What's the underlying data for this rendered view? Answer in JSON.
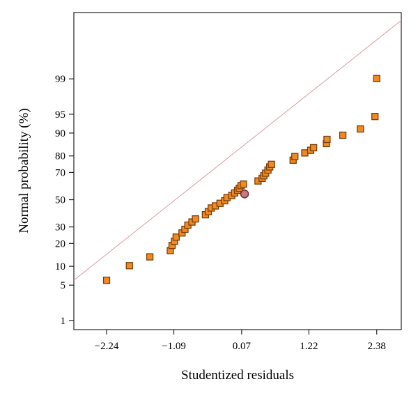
{
  "chart_data": {
    "type": "scatter",
    "title": "",
    "xlabel": "Studentized residuals",
    "ylabel": "Normal probability (%)",
    "xlim": [
      -2.8,
      2.8
    ],
    "ylim": [
      -2.5,
      3.6
    ],
    "x_ticks": [
      {
        "value": -2.24,
        "label": "−2.24"
      },
      {
        "value": -1.09,
        "label": "−1.09"
      },
      {
        "value": 0.07,
        "label": "0.07"
      },
      {
        "value": 1.22,
        "label": "1.22"
      },
      {
        "value": 2.38,
        "label": "2.38"
      }
    ],
    "y_ticks": [
      {
        "value": 1,
        "label": "1"
      },
      {
        "value": 5,
        "label": "5"
      },
      {
        "value": 10,
        "label": "10"
      },
      {
        "value": 20,
        "label": "20"
      },
      {
        "value": 30,
        "label": "30"
      },
      {
        "value": 50,
        "label": "50"
      },
      {
        "value": 70,
        "label": "70"
      },
      {
        "value": 80,
        "label": "80"
      },
      {
        "value": 90,
        "label": "90"
      },
      {
        "value": 95,
        "label": "95"
      },
      {
        "value": 99,
        "label": "99"
      }
    ],
    "reference_line": {
      "x": [
        -2.8,
        2.8
      ],
      "y": [
        -1.55,
        3.45
      ],
      "color": "#d99aa0"
    },
    "series": [
      {
        "marker": "square",
        "color": "#f08a24",
        "stroke": "#7a3d06",
        "points": [
          {
            "x": -2.24,
            "y": -1.55
          },
          {
            "x": -1.85,
            "y": -1.27
          },
          {
            "x": -1.5,
            "y": -1.1
          },
          {
            "x": -1.15,
            "y": -0.98
          },
          {
            "x": -1.12,
            "y": -0.88
          },
          {
            "x": -1.08,
            "y": -0.8
          },
          {
            "x": -1.05,
            "y": -0.72
          },
          {
            "x": -0.95,
            "y": -0.64
          },
          {
            "x": -0.9,
            "y": -0.57
          },
          {
            "x": -0.85,
            "y": -0.49
          },
          {
            "x": -0.78,
            "y": -0.43
          },
          {
            "x": -0.72,
            "y": -0.37
          },
          {
            "x": -0.55,
            "y": -0.29
          },
          {
            "x": -0.5,
            "y": -0.23
          },
          {
            "x": -0.45,
            "y": -0.16
          },
          {
            "x": -0.38,
            "y": -0.12
          },
          {
            "x": -0.3,
            "y": -0.07
          },
          {
            "x": -0.22,
            "y": -0.02
          },
          {
            "x": -0.18,
            "y": 0.04
          },
          {
            "x": -0.1,
            "y": 0.08
          },
          {
            "x": -0.05,
            "y": 0.13
          },
          {
            "x": 0.0,
            "y": 0.18
          },
          {
            "x": 0.03,
            "y": 0.22
          },
          {
            "x": 0.06,
            "y": 0.27
          },
          {
            "x": 0.1,
            "y": 0.3
          },
          {
            "x": 0.35,
            "y": 0.36
          },
          {
            "x": 0.42,
            "y": 0.41
          },
          {
            "x": 0.45,
            "y": 0.46
          },
          {
            "x": 0.48,
            "y": 0.51
          },
          {
            "x": 0.52,
            "y": 0.57
          },
          {
            "x": 0.55,
            "y": 0.63
          },
          {
            "x": 0.58,
            "y": 0.68
          },
          {
            "x": 0.95,
            "y": 0.76
          },
          {
            "x": 0.98,
            "y": 0.83
          },
          {
            "x": 1.15,
            "y": 0.9
          },
          {
            "x": 1.25,
            "y": 0.95
          },
          {
            "x": 1.3,
            "y": 1.0
          },
          {
            "x": 1.52,
            "y": 1.08
          },
          {
            "x": 1.53,
            "y": 1.16
          },
          {
            "x": 1.8,
            "y": 1.24
          },
          {
            "x": 2.1,
            "y": 1.36
          },
          {
            "x": 2.35,
            "y": 1.6
          },
          {
            "x": 2.38,
            "y": 2.33
          }
        ]
      },
      {
        "marker": "circle",
        "color": "#c87a82",
        "stroke": "#6b2f36",
        "points": [
          {
            "x": 0.12,
            "y": 0.11
          }
        ]
      }
    ],
    "grid": false
  }
}
